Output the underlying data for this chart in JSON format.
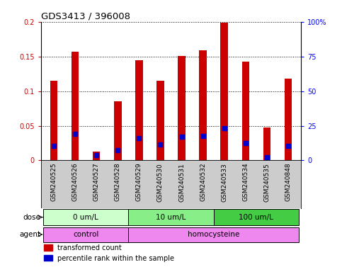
{
  "title": "GDS3413 / 396008",
  "samples": [
    "GSM240525",
    "GSM240526",
    "GSM240527",
    "GSM240528",
    "GSM240529",
    "GSM240530",
    "GSM240531",
    "GSM240532",
    "GSM240533",
    "GSM240534",
    "GSM240535",
    "GSM240848"
  ],
  "red_values": [
    0.115,
    0.157,
    0.013,
    0.085,
    0.145,
    0.115,
    0.151,
    0.159,
    0.199,
    0.142,
    0.047,
    0.118
  ],
  "blue_values": [
    0.021,
    0.038,
    0.008,
    0.015,
    0.032,
    0.023,
    0.034,
    0.035,
    0.046,
    0.025,
    0.005,
    0.021
  ],
  "ylim_left": [
    0,
    0.2
  ],
  "ylim_right": [
    0,
    100
  ],
  "yticks_left": [
    0,
    0.05,
    0.1,
    0.15,
    0.2
  ],
  "yticks_right": [
    0,
    25,
    50,
    75,
    100
  ],
  "ytick_labels_left": [
    "0",
    "0.05",
    "0.1",
    "0.15",
    "0.2"
  ],
  "ytick_labels_right": [
    "0",
    "25",
    "50",
    "75",
    "100%"
  ],
  "red_color": "#CC0000",
  "blue_color": "#0000CC",
  "bar_width": 0.35,
  "dose_labels": [
    "0 um/L",
    "10 um/L",
    "100 um/L"
  ],
  "dose_colors": [
    "#ccffcc",
    "#88ee88",
    "#44cc44"
  ],
  "agent_labels": [
    "control",
    "homocysteine"
  ],
  "agent_color": "#ee88ee",
  "tick_bg_color": "#cccccc",
  "background_color": "#ffffff"
}
